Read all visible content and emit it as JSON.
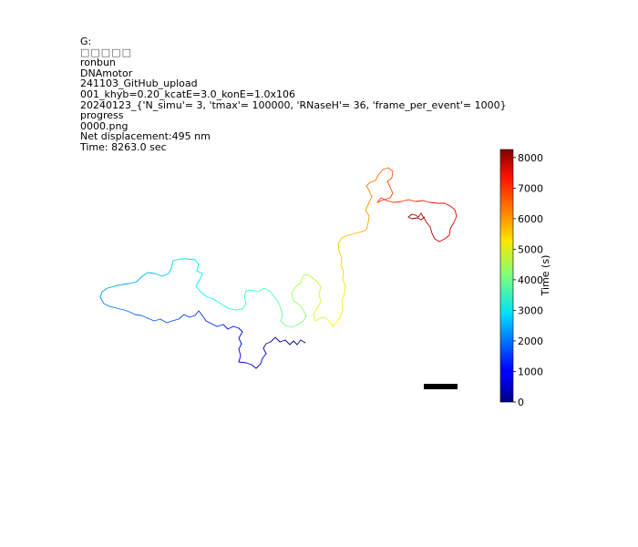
{
  "header": {
    "lines": [
      "G:",
      "□□□□□",
      "ronbun",
      "DNAmotor",
      "241103_GitHub_upload",
      "001_khyb=0.20_kcatE=3.0_konE=1.0x106",
      "20240123_{'N_simu'= 3, 'tmax'= 100000, 'RNaseH'= 36, 'frame_per_event'= 1000}",
      "progress",
      "0000.png",
      "Net displacement:495 nm",
      "Time: 8263.0 sec"
    ]
  },
  "chart_data": {
    "type": "line",
    "title": "",
    "colormap": "jet",
    "colorbar": {
      "label": "Time (s)",
      "range": [
        0,
        8263
      ],
      "ticks": [
        0,
        1000,
        2000,
        3000,
        4000,
        5000,
        6000,
        7000,
        8000
      ]
    },
    "axes_visible": false,
    "scale_bar": {
      "label": "",
      "color": "#000000"
    },
    "series": [
      {
        "path_points": [
          [
            335,
            376
          ],
          [
            330,
            373
          ],
          [
            326,
            378
          ],
          [
            322,
            374
          ],
          [
            318,
            378
          ],
          [
            313,
            373
          ],
          [
            307,
            375
          ],
          [
            302,
            370
          ],
          [
            297,
            375
          ],
          [
            292,
            377
          ],
          [
            289,
            382
          ],
          [
            292,
            388
          ],
          [
            288,
            393
          ],
          [
            286,
            399
          ],
          [
            281,
            404
          ],
          [
            276,
            400
          ],
          [
            270,
            398
          ],
          [
            262,
            397
          ],
          [
            264,
            390
          ],
          [
            262,
            383
          ],
          [
            265,
            377
          ],
          [
            262,
            371
          ],
          [
            266,
            364
          ],
          [
            262,
            360
          ],
          [
            256,
            358
          ],
          [
            250,
            361
          ],
          [
            245,
            356
          ],
          [
            238,
            358
          ],
          [
            232,
            355
          ],
          [
            226,
            352
          ],
          [
            222,
            346
          ],
          [
            218,
            341
          ],
          [
            214,
            346
          ],
          [
            208,
            348
          ],
          [
            202,
            345
          ],
          [
            196,
            350
          ],
          [
            189,
            352
          ],
          [
            183,
            354
          ],
          [
            176,
            350
          ],
          [
            169,
            352
          ],
          [
            162,
            349
          ],
          [
            155,
            346
          ],
          [
            148,
            345
          ],
          [
            142,
            342
          ],
          [
            136,
            340
          ],
          [
            128,
            338
          ],
          [
            120,
            336
          ],
          [
            114,
            333
          ],
          [
            110,
            326
          ],
          [
            112,
            320
          ],
          [
            118,
            316
          ],
          [
            126,
            314
          ],
          [
            134,
            312
          ],
          [
            142,
            311
          ],
          [
            150,
            309
          ],
          [
            156,
            303
          ],
          [
            162,
            299
          ],
          [
            170,
            300
          ],
          [
            178,
            303
          ],
          [
            185,
            300
          ],
          [
            188,
            294
          ],
          [
            190,
            286
          ],
          [
            198,
            284
          ],
          [
            206,
            284
          ],
          [
            214,
            285
          ],
          [
            218,
            290
          ],
          [
            216,
            297
          ],
          [
            222,
            300
          ],
          [
            219,
            307
          ],
          [
            215,
            314
          ],
          [
            220,
            320
          ],
          [
            226,
            325
          ],
          [
            234,
            328
          ],
          [
            242,
            333
          ],
          [
            250,
            338
          ],
          [
            258,
            340
          ],
          [
            266,
            339
          ],
          [
            270,
            333
          ],
          [
            268,
            326
          ],
          [
            270,
            319
          ],
          [
            276,
            318
          ],
          [
            283,
            320
          ],
          [
            290,
            316
          ],
          [
            296,
            319
          ],
          [
            300,
            324
          ],
          [
            305,
            331
          ],
          [
            308,
            338
          ],
          [
            310,
            345
          ],
          [
            308,
            352
          ],
          [
            313,
            357
          ],
          [
            320,
            359
          ],
          [
            327,
            356
          ],
          [
            333,
            352
          ],
          [
            336,
            346
          ],
          [
            332,
            339
          ],
          [
            328,
            334
          ],
          [
            322,
            330
          ],
          [
            320,
            322
          ],
          [
            324,
            315
          ],
          [
            330,
            310
          ],
          [
            333,
            302
          ],
          [
            338,
            301
          ],
          [
            343,
            305
          ],
          [
            348,
            309
          ],
          [
            352,
            315
          ],
          [
            350,
            323
          ],
          [
            352,
            331
          ],
          [
            348,
            338
          ],
          [
            344,
            345
          ],
          [
            346,
            352
          ],
          [
            351,
            349
          ],
          [
            356,
            348
          ],
          [
            361,
            352
          ],
          [
            365,
            358
          ],
          [
            370,
            353
          ],
          [
            374,
            346
          ],
          [
            376,
            338
          ],
          [
            375,
            330
          ],
          [
            378,
            322
          ],
          [
            379,
            314
          ],
          [
            376,
            306
          ],
          [
            377,
            298
          ],
          [
            374,
            291
          ],
          [
            375,
            283
          ],
          [
            372,
            275
          ],
          [
            371,
            267
          ],
          [
            375,
            261
          ],
          [
            382,
            258
          ],
          [
            390,
            256
          ],
          [
            397,
            254
          ],
          [
            402,
            252
          ],
          [
            404,
            244
          ],
          [
            405,
            237
          ],
          [
            401,
            231
          ],
          [
            404,
            224
          ],
          [
            408,
            216
          ],
          [
            405,
            209
          ],
          [
            402,
            204
          ],
          [
            406,
            200
          ],
          [
            412,
            198
          ],
          [
            415,
            192
          ],
          [
            420,
            186
          ],
          [
            426,
            184
          ],
          [
            431,
            188
          ],
          [
            430,
            195
          ],
          [
            425,
            199
          ],
          [
            428,
            205
          ],
          [
            431,
            212
          ],
          [
            428,
            217
          ],
          [
            421,
            219
          ],
          [
            414,
            222
          ],
          [
            418,
            217
          ],
          [
            424,
            220
          ],
          [
            432,
            222
          ],
          [
            440,
            221
          ],
          [
            448,
            219
          ],
          [
            456,
            221
          ],
          [
            464,
            220
          ],
          [
            472,
            222
          ],
          [
            480,
            223
          ],
          [
            488,
            223
          ],
          [
            494,
            226
          ],
          [
            499,
            230
          ],
          [
            501,
            237
          ],
          [
            498,
            244
          ],
          [
            494,
            251
          ],
          [
            493,
            258
          ],
          [
            488,
            262
          ],
          [
            482,
            265
          ],
          [
            477,
            262
          ],
          [
            474,
            256
          ],
          [
            472,
            249
          ],
          [
            468,
            244
          ],
          [
            465,
            239
          ],
          [
            462,
            234
          ],
          [
            459,
            238
          ],
          [
            456,
            236
          ],
          [
            452,
            235
          ],
          [
            448,
            238
          ],
          [
            452,
            240
          ],
          [
            458,
            239
          ],
          [
            462,
            241
          ],
          [
            466,
            238
          ]
        ]
      }
    ]
  }
}
